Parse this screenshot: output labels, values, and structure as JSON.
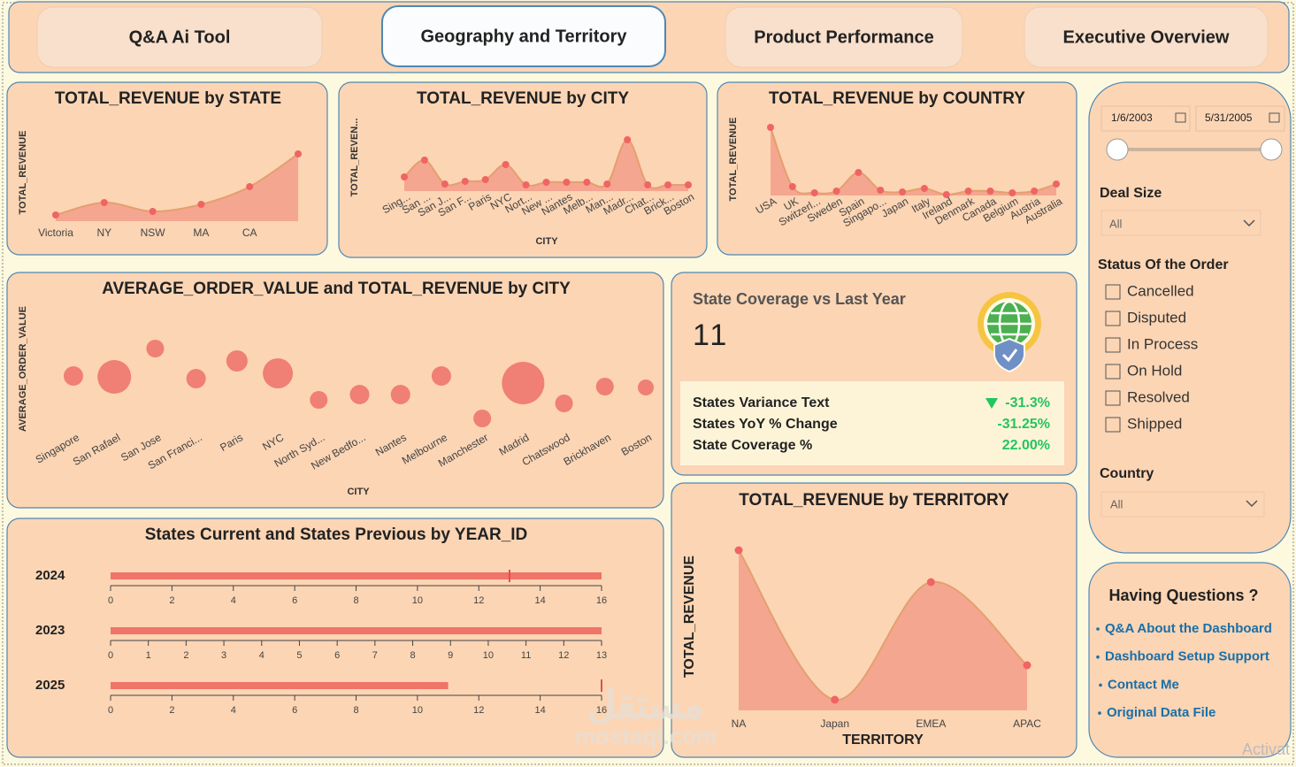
{
  "nav": {
    "buttons": [
      "Q&A Ai Tool",
      "Geography and Territory",
      "Product Performance",
      "Executive Overview"
    ],
    "active": 1
  },
  "chart_data": [
    {
      "type": "area",
      "title": "TOTAL_REVENUE by STATE",
      "y_label": "TOTAL_REVENUE",
      "categories": [
        "Victoria",
        "NY",
        "NSW",
        "MA",
        "CA",
        null
      ],
      "values": [
        70000,
        210000,
        110000,
        190000,
        390000,
        760000
      ],
      "color": "#f5a690",
      "line_color": "#e3a06e",
      "point_color": "#f06464"
    },
    {
      "type": "area",
      "title": "TOTAL_REVENUE by CITY",
      "y_label": "TOTAL_REVEN...",
      "x_label": "CITY",
      "categories": [
        "Sing...",
        "San ...",
        "San J...",
        "San F...",
        "Paris",
        "NYC",
        "Nort...",
        "New ...",
        "Nantes",
        "Melb...",
        "Man...",
        "Madr...",
        "Chat...",
        "Brick...",
        "Boston"
      ],
      "values": [
        304000,
        665000,
        152000,
        209000,
        247000,
        570000,
        133000,
        190000,
        190000,
        190000,
        152000,
        1102000,
        133000,
        133000,
        133000
      ],
      "color": "#f5a690",
      "line_color": "#e3a06e",
      "point_color": "#f06464"
    },
    {
      "type": "area",
      "title": "TOTAL_REVENUE by COUNTRY",
      "y_label": "TOTAL_REVENUE",
      "categories": [
        "USA",
        "UK",
        "Switzerl...",
        "Sweden",
        "Spain",
        "Singapo...",
        "Japan",
        "Italy",
        "Ireland",
        "Denmark",
        "Canada",
        "Belgium",
        "Austria",
        "Australia"
      ],
      "values": [
        3465000,
        450000,
        135000,
        225000,
        1170000,
        270000,
        180000,
        360000,
        45000,
        225000,
        225000,
        135000,
        225000,
        585000
      ],
      "color": "#f5a690",
      "line_color": "#e3a06e",
      "point_color": "#f06464"
    },
    {
      "type": "bubble",
      "title": "AVERAGE_ORDER_VALUE and TOTAL_REVENUE by CITY",
      "y_label": "AVERAGE_ORDER_VALUE",
      "x_label": "CITY",
      "categories": [
        "Singapore",
        "San Rafael",
        "San Jose",
        "San Franci...",
        "Paris",
        "NYC",
        "North Syd...",
        "New Bedfo...",
        "Nantes",
        "Melbourne",
        "Manchester",
        "Madrid",
        "Chatswood",
        "Brickhaven",
        "Boston"
      ],
      "values": [
        4250,
        4220,
        5180,
        4160,
        4760,
        4340,
        3440,
        3620,
        3620,
        4250,
        2810,
        4010,
        3320,
        3890,
        3860
      ],
      "sizes": [
        230000,
        686000,
        190000,
        230000,
        274000,
        549000,
        190000,
        230000,
        230000,
        230000,
        190000,
        1094000,
        190000,
        190000,
        154000
      ],
      "color": "#f07f76"
    },
    {
      "type": "bullet",
      "title": "States Current and States Previous by YEAR_ID",
      "categories": [
        "2024",
        "2023",
        "2025"
      ],
      "series": [
        {
          "color": "#f07468",
          "values": [
            16,
            13,
            11
          ]
        },
        {
          "color": "#d9534f",
          "values": [
            13,
            null,
            16
          ]
        }
      ],
      "xlim": [
        [
          0,
          16
        ],
        [
          0,
          13
        ],
        [
          0,
          16
        ]
      ],
      "xticks": [
        [
          0,
          2,
          4,
          6,
          8,
          10,
          12,
          14,
          16
        ],
        [
          0,
          1,
          2,
          3,
          4,
          5,
          6,
          7,
          8,
          9,
          10,
          11,
          12,
          13
        ],
        [
          0,
          2,
          4,
          6,
          8,
          10,
          12,
          14,
          16
        ]
      ]
    },
    {
      "type": "area",
      "title": "TOTAL_REVENUE by TERRITORY",
      "y_label": "TOTAL_REVENUE",
      "x_label": "TERRITORY",
      "categories": [
        "NA",
        "Japan",
        "EMEA",
        "APAC"
      ],
      "values": [
        3620000,
        240000,
        2900000,
        1020000
      ],
      "color": "#f5a690",
      "line_color": "#e3a06e",
      "point_color": "#f06464"
    }
  ],
  "kpi": {
    "title": "State Coverage vs Last Year",
    "value": 11,
    "rows": [
      {
        "label": "States Variance Text",
        "value": "-31.3%"
      },
      {
        "label": "States YoY % Change",
        "value": "-31.25%"
      },
      {
        "label": "State Coverage %",
        "value": "22.00%"
      }
    ]
  },
  "filters": {
    "date_from": "1/6/2003",
    "date_to": "5/31/2005",
    "deal_size": {
      "label": "Deal Size",
      "value": "All"
    },
    "status": {
      "label": "Status Of the Order",
      "options": [
        "Cancelled",
        "Disputed",
        "In Process",
        "On Hold",
        "Resolved",
        "Shipped"
      ]
    },
    "country": {
      "label": "Country",
      "value": "All"
    }
  },
  "help": {
    "title": "Having Questions ?",
    "links": [
      "Q&A About the Dashboard",
      "Dashboard Setup Support",
      "Contact Me",
      "Original Data File"
    ]
  },
  "watermark": [
    "مستقل",
    "mostaql.com"
  ],
  "activation_notice": "Activat"
}
